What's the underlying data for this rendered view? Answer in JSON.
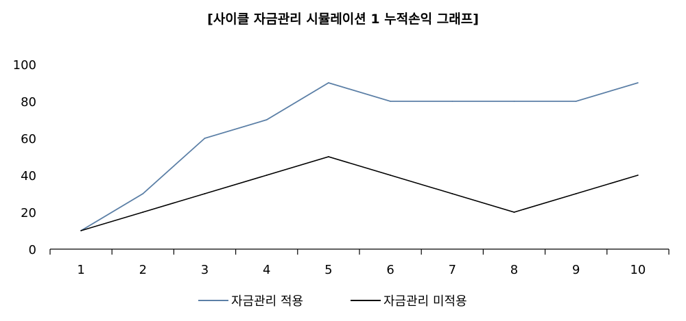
{
  "chart_data": {
    "type": "line",
    "title": "[사이클 자금관리 시뮬레이션 1 누적손익 그래프]",
    "xlabel": "",
    "ylabel": "",
    "categories": [
      "1",
      "2",
      "3",
      "4",
      "5",
      "6",
      "7",
      "8",
      "9",
      "10"
    ],
    "ylim": [
      0,
      100
    ],
    "yticks": [
      "0",
      "20",
      "40",
      "60",
      "80",
      "100"
    ],
    "grid": false,
    "legend": "bottom",
    "series": [
      {
        "name": "자금관리 적용",
        "color": "#5b7fa6",
        "values": [
          10,
          30,
          60,
          70,
          90,
          80,
          80,
          80,
          80,
          90
        ]
      },
      {
        "name": "자금관리 미적용",
        "color": "#000000",
        "values": [
          10,
          20,
          30,
          40,
          50,
          40,
          30,
          20,
          30,
          40
        ]
      }
    ]
  }
}
